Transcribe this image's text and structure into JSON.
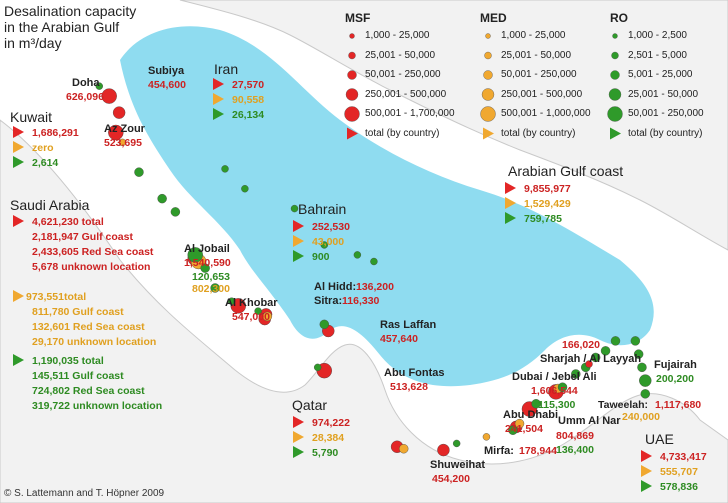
{
  "title": [
    "Desalination capacity",
    "in the Arabian Gulf",
    "in m³/day"
  ],
  "credit": "© S. Lattemann and T. Höpner 2009",
  "colors": {
    "msf": "#e32626",
    "med": "#f0a830",
    "ro": "#2f9a2a",
    "water": "#8fdcf0",
    "land": "#f2f2f2",
    "coast": "#c9c9c9"
  },
  "legend": {
    "msf": {
      "header": "MSF",
      "items": [
        "1,000 - 25,000",
        "25,001 - 50,000",
        "50,001 - 250,000",
        "250,001 - 500,000",
        "500,001 - 1,700,000"
      ],
      "total": "total (by country)"
    },
    "med": {
      "header": "MED",
      "items": [
        "1,000 - 25,000",
        "25,001 - 50,000",
        "50,001 - 250,000",
        "250,001 - 500,000",
        "500,001 - 1,000,000"
      ],
      "total": "total (by country)"
    },
    "ro": {
      "header": "RO",
      "items": [
        "1,000 - 2,500",
        "2,501 - 5,000",
        "5,001 - 25,000",
        "25,001 - 50,000",
        "50,001 - 250,000"
      ],
      "total": "total (by country)"
    }
  },
  "countries": {
    "kuwait": {
      "name": "Kuwait",
      "msf": "1,686,291",
      "med": "zero",
      "ro": "2,614"
    },
    "iran": {
      "name": "Iran",
      "msf": "27,570",
      "med": "90,558",
      "ro": "26,134"
    },
    "bahrain": {
      "name": "Bahrain",
      "msf": "252,530",
      "med": "43,000",
      "ro": "900"
    },
    "qatar": {
      "name": "Qatar",
      "msf": "974,222",
      "med": "28,384",
      "ro": "5,790"
    },
    "uae": {
      "name": "UAE",
      "msf": "4,733,417",
      "med": "555,707",
      "ro": "578,836"
    },
    "gulf": {
      "name": "Arabian Gulf coast",
      "msf": "9,855,977",
      "med": "1,529,429",
      "ro": "759,785"
    },
    "saudi": {
      "name": "Saudi Arabia",
      "msf": [
        "4,621,230 total",
        "2,181,947 Gulf coast",
        "2,433,605 Red Sea coast",
        "5,678 unknown location"
      ],
      "med": [
        "973,551total",
        "811,780 Gulf coast",
        "132,601 Red Sea coast",
        "29,170 unknown location"
      ],
      "ro": [
        "1,190,035 total",
        "145,511 Gulf coast",
        "724,802 Red Sea coast",
        "319,722 unknown location"
      ]
    }
  },
  "sites": {
    "doha": {
      "name": "Doha",
      "red": "626,096"
    },
    "subiya": {
      "name": "Subiya",
      "red": "454,600"
    },
    "azzour": {
      "name": "Az Zour",
      "red": "523,695"
    },
    "aljobail": {
      "name": "Al Jobail",
      "red": "1,540,590",
      "green": "120,653",
      "orange": "802,300"
    },
    "alkhobar": {
      "name": "Al Khobar",
      "red": "547,000"
    },
    "alhidd": {
      "name": "Al Hidd:",
      "red": "136,200"
    },
    "sitra": {
      "name": "Sitra:",
      "red": "116,330"
    },
    "raslaffan": {
      "name": "Ras Laffan",
      "red": "457,640"
    },
    "abufontas": {
      "name": "Abu Fontas",
      "red": "513,628"
    },
    "sharjah": {
      "name": "Sharjah / Al Layyah",
      "red": "166,020"
    },
    "dubai": {
      "name": "Dubai / Jebel Ali",
      "red": "1,606,544",
      "green": "115,300"
    },
    "fujairah": {
      "name": "Fujairah",
      "green": "200,200"
    },
    "taweelah": {
      "name": "Taweelah:",
      "red": "1,117,680",
      "orange": "240,000"
    },
    "abudhabi": {
      "name": "Abu Dhabi",
      "red": "241,504"
    },
    "umm": {
      "name": "Umm Al Nar",
      "red": "804,869",
      "green": "136,400"
    },
    "mirfa": {
      "name": "Mirfa:",
      "red": "178,944"
    },
    "shuweihat": {
      "name": "Shuweihat",
      "red": "454,200"
    }
  },
  "plants": [
    {
      "t": "msf",
      "c": 5,
      "x": 48.25,
      "y": 29.45
    },
    {
      "t": "msf",
      "c": 4,
      "x": 48.4,
      "y": 29.2
    },
    {
      "t": "ro",
      "c": 2,
      "x": 48.1,
      "y": 29.6
    },
    {
      "t": "msf",
      "c": 5,
      "x": 48.35,
      "y": 28.9
    },
    {
      "t": "med",
      "c": 2,
      "x": 48.45,
      "y": 28.75
    },
    {
      "t": "ro",
      "c": 3,
      "x": 48.7,
      "y": 28.3
    },
    {
      "t": "ro",
      "c": 3,
      "x": 49.05,
      "y": 27.9
    },
    {
      "t": "ro",
      "c": 3,
      "x": 49.25,
      "y": 27.7
    },
    {
      "t": "msf",
      "c": 5,
      "x": 49.55,
      "y": 27.0
    },
    {
      "t": "med",
      "c": 5,
      "x": 49.6,
      "y": 26.95
    },
    {
      "t": "ro",
      "c": 5,
      "x": 49.55,
      "y": 27.05
    },
    {
      "t": "ro",
      "c": 3,
      "x": 49.7,
      "y": 26.85
    },
    {
      "t": "ro",
      "c": 3,
      "x": 49.85,
      "y": 26.55
    },
    {
      "t": "msf",
      "c": 5,
      "x": 50.2,
      "y": 26.28
    },
    {
      "t": "ro",
      "c": 2,
      "x": 50.1,
      "y": 26.35
    },
    {
      "t": "msf",
      "c": 4,
      "x": 50.62,
      "y": 26.15
    },
    {
      "t": "msf",
      "c": 4,
      "x": 50.6,
      "y": 26.08
    },
    {
      "t": "med",
      "c": 3,
      "x": 50.64,
      "y": 26.12
    },
    {
      "t": "ro",
      "c": 2,
      "x": 50.5,
      "y": 26.2
    },
    {
      "t": "msf",
      "c": 4,
      "x": 51.56,
      "y": 25.9
    },
    {
      "t": "ro",
      "c": 3,
      "x": 51.5,
      "y": 26.0
    },
    {
      "t": "msf",
      "c": 5,
      "x": 51.5,
      "y": 25.3
    },
    {
      "t": "ro",
      "c": 2,
      "x": 51.4,
      "y": 25.35
    },
    {
      "t": "msf",
      "c": 4,
      "x": 52.6,
      "y": 24.15
    },
    {
      "t": "med",
      "c": 3,
      "x": 52.7,
      "y": 24.12
    },
    {
      "t": "msf",
      "c": 4,
      "x": 53.3,
      "y": 24.1
    },
    {
      "t": "ro",
      "c": 2,
      "x": 53.5,
      "y": 24.2
    },
    {
      "t": "med",
      "c": 2,
      "x": 53.95,
      "y": 24.3
    },
    {
      "t": "msf",
      "c": 4,
      "x": 54.4,
      "y": 24.45
    },
    {
      "t": "med",
      "c": 3,
      "x": 54.45,
      "y": 24.5
    },
    {
      "t": "ro",
      "c": 3,
      "x": 54.35,
      "y": 24.4
    },
    {
      "t": "msf",
      "c": 5,
      "x": 54.6,
      "y": 24.72
    },
    {
      "t": "ro",
      "c": 3,
      "x": 54.7,
      "y": 24.8
    },
    {
      "t": "msf",
      "c": 5,
      "x": 55.0,
      "y": 24.98
    },
    {
      "t": "med",
      "c": 3,
      "x": 55.03,
      "y": 25.03
    },
    {
      "t": "ro",
      "c": 3,
      "x": 55.1,
      "y": 25.05
    },
    {
      "t": "ro",
      "c": 3,
      "x": 55.3,
      "y": 25.25
    },
    {
      "t": "ro",
      "c": 3,
      "x": 55.45,
      "y": 25.35
    },
    {
      "t": "ro",
      "c": 3,
      "x": 55.6,
      "y": 25.5
    },
    {
      "t": "ro",
      "c": 3,
      "x": 55.75,
      "y": 25.6
    },
    {
      "t": "ro",
      "c": 3,
      "x": 55.9,
      "y": 25.75
    },
    {
      "t": "msf",
      "c": 2,
      "x": 55.5,
      "y": 25.4
    },
    {
      "t": "ro",
      "c": 4,
      "x": 56.35,
      "y": 25.15
    },
    {
      "t": "ro",
      "c": 3,
      "x": 56.35,
      "y": 24.95
    },
    {
      "t": "ro",
      "c": 3,
      "x": 56.3,
      "y": 25.35
    },
    {
      "t": "ro",
      "c": 3,
      "x": 56.25,
      "y": 25.55
    },
    {
      "t": "ro",
      "c": 3,
      "x": 56.2,
      "y": 25.75
    },
    {
      "t": "ro",
      "c": 2,
      "x": 50.0,
      "y": 28.35
    },
    {
      "t": "ro",
      "c": 2,
      "x": 50.3,
      "y": 28.05
    },
    {
      "t": "ro",
      "c": 2,
      "x": 51.05,
      "y": 27.75
    },
    {
      "t": "ro",
      "c": 2,
      "x": 51.5,
      "y": 27.2
    },
    {
      "t": "ro",
      "c": 2,
      "x": 52.0,
      "y": 27.05
    },
    {
      "t": "ro",
      "c": 2,
      "x": 52.25,
      "y": 26.95
    }
  ]
}
